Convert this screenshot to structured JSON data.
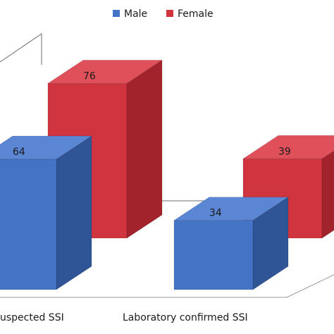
{
  "chart_data": {
    "type": "bar",
    "title": "",
    "xlabel": "",
    "ylabel": "",
    "categories": [
      "Suspected SSI",
      "Laboratory confirmed SSI"
    ],
    "category_labels_visible": [
      "uspected SSI",
      "Laboratory confirmed SSI"
    ],
    "series": [
      {
        "name": "Male",
        "values": [
          64,
          34
        ],
        "color": "#4472C4"
      },
      {
        "name": "Female",
        "values": [
          76,
          39
        ],
        "color": "#D0343F"
      }
    ],
    "ylim": [
      0,
      90
    ],
    "legend_position": "top",
    "grid": false,
    "style": "3d-column"
  }
}
